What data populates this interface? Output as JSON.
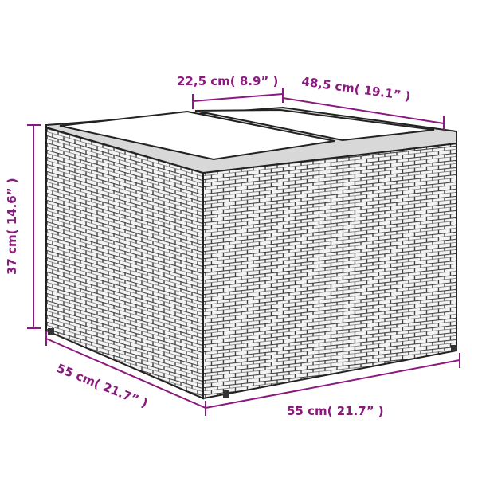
{
  "colors": {
    "dimension": "#8b1a7f",
    "outline": "#222222",
    "wicker": "#555555"
  },
  "dimensions": {
    "top_section_width": "22,5 cm( 8.9” )",
    "top_depth": "48,5 cm( 19.1” )",
    "height": "37 cm( 14.6” )",
    "left_width": "55 cm( 21.7” )",
    "right_width": "55 cm( 21.7” )"
  }
}
